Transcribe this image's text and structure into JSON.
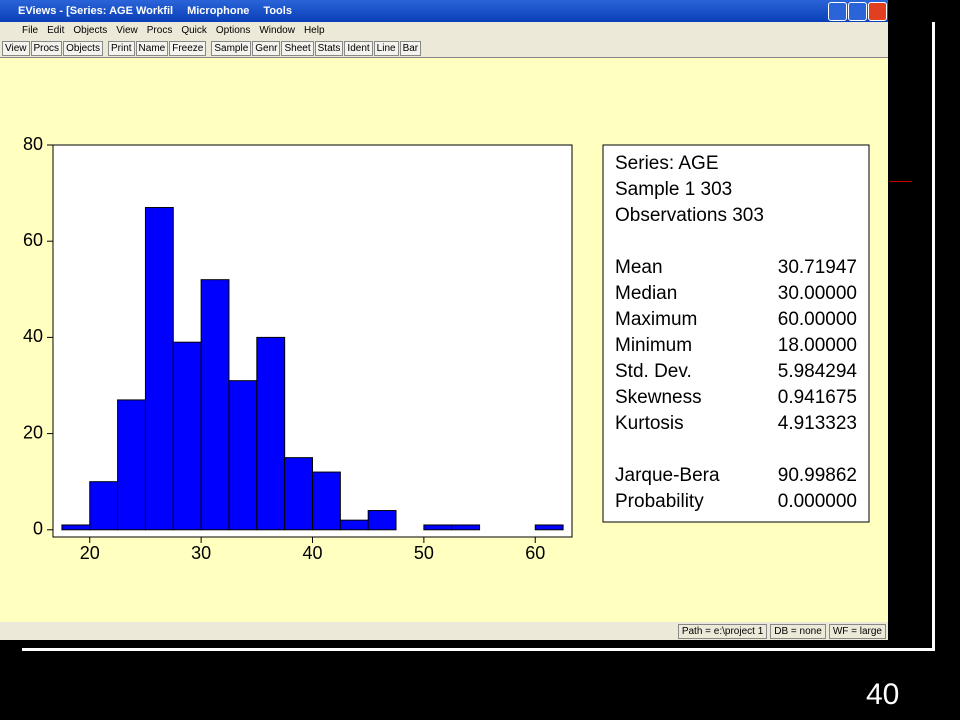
{
  "window": {
    "title": "EViews - [Series: AGE   Workfil",
    "language_bar": [
      "Microphone",
      "Tools"
    ],
    "menu": [
      "File",
      "Edit",
      "Objects",
      "View",
      "Procs",
      "Quick",
      "Options",
      "Window",
      "Help"
    ],
    "toolbar": [
      "View",
      "Procs",
      "Objects",
      "Print",
      "Name",
      "Freeze",
      "Sample",
      "Genr",
      "Sheet",
      "Stats",
      "Ident",
      "Line",
      "Bar"
    ],
    "status": [
      "Path = e:\\project 1",
      "DB = none",
      "WF = large"
    ]
  },
  "chart_data": {
    "type": "histogram",
    "bins": [
      17.5,
      20,
      22.5,
      25,
      27.5,
      30,
      32.5,
      35,
      37.5,
      40,
      42.5,
      45,
      47.5,
      50,
      52.5,
      55,
      57.5,
      60,
      62.5
    ],
    "values": [
      1,
      10,
      27,
      67,
      39,
      52,
      31,
      40,
      15,
      12,
      2,
      4,
      0,
      1,
      1,
      0,
      0,
      1
    ],
    "color": "#0000ff",
    "xlim": [
      16.7,
      63.3
    ],
    "ylim": [
      -1.5,
      80
    ],
    "xticks": [
      20,
      30,
      40,
      50,
      60
    ],
    "yticks": [
      0,
      20,
      40,
      60,
      80
    ]
  },
  "stats": {
    "header": [
      "Series: AGE",
      "Sample 1 303",
      "Observations 303"
    ],
    "rows": [
      [
        "Mean",
        "30.71947"
      ],
      [
        "Median",
        "30.00000"
      ],
      [
        "Maximum",
        "60.00000"
      ],
      [
        "Minimum",
        "18.00000"
      ],
      [
        "Std. Dev.",
        "5.984294"
      ],
      [
        "Skewness",
        "0.941675"
      ],
      [
        "Kurtosis",
        "4.913323"
      ]
    ],
    "tests": [
      [
        "Jarque-Bera",
        "90.99862"
      ],
      [
        "Probability",
        "0.000000"
      ]
    ]
  },
  "slide_number": "40"
}
